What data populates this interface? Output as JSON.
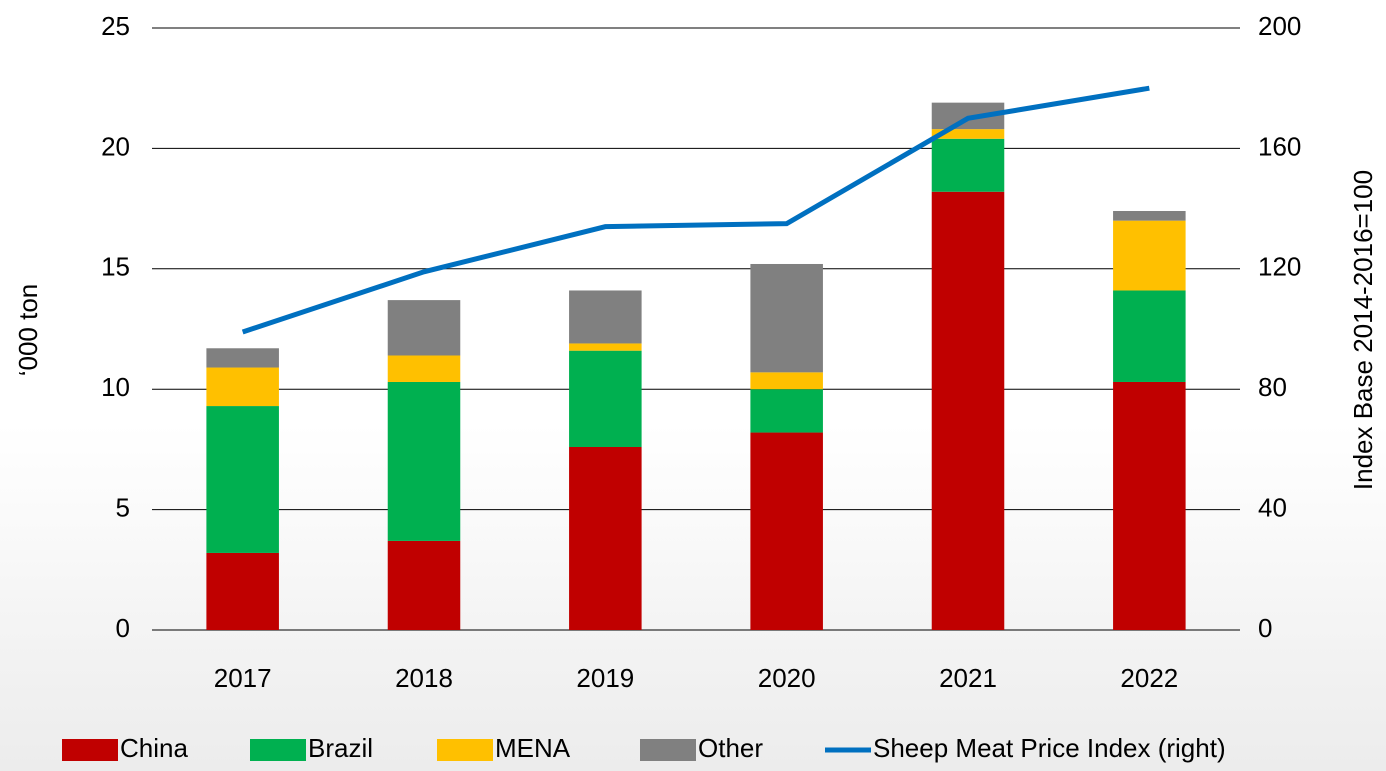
{
  "chart_data": {
    "type": "bar",
    "categories": [
      "2017",
      "2018",
      "2019",
      "2020",
      "2021",
      "2022"
    ],
    "ylabel": "‘000 ton",
    "y2label": "Index Base 2014-2016=100",
    "ylim": [
      0,
      25
    ],
    "yticks": [
      0,
      5,
      10,
      15,
      20,
      25
    ],
    "y2lim": [
      0,
      200
    ],
    "y2ticks": [
      0,
      40,
      80,
      120,
      160,
      200
    ],
    "grid": true,
    "stacked": true,
    "legend": "bottom",
    "series": [
      {
        "name": "China",
        "color": "#c00000",
        "values": [
          3.2,
          3.7,
          7.6,
          8.2,
          18.2,
          10.3
        ]
      },
      {
        "name": "Brazil",
        "color": "#00b050",
        "values": [
          6.1,
          6.6,
          4.0,
          1.8,
          2.2,
          3.8
        ]
      },
      {
        "name": "MENA",
        "color": "#ffc000",
        "values": [
          1.6,
          1.1,
          0.3,
          0.7,
          0.4,
          2.9
        ]
      },
      {
        "name": "Other",
        "color": "#808080",
        "values": [
          0.8,
          2.3,
          2.2,
          4.5,
          1.1,
          0.4
        ]
      },
      {
        "name": "Sheep Meat Price Index (right)",
        "type": "line",
        "axis": "y2",
        "color": "#0070c0",
        "values": [
          99,
          119,
          134,
          135,
          170,
          180
        ]
      }
    ]
  }
}
